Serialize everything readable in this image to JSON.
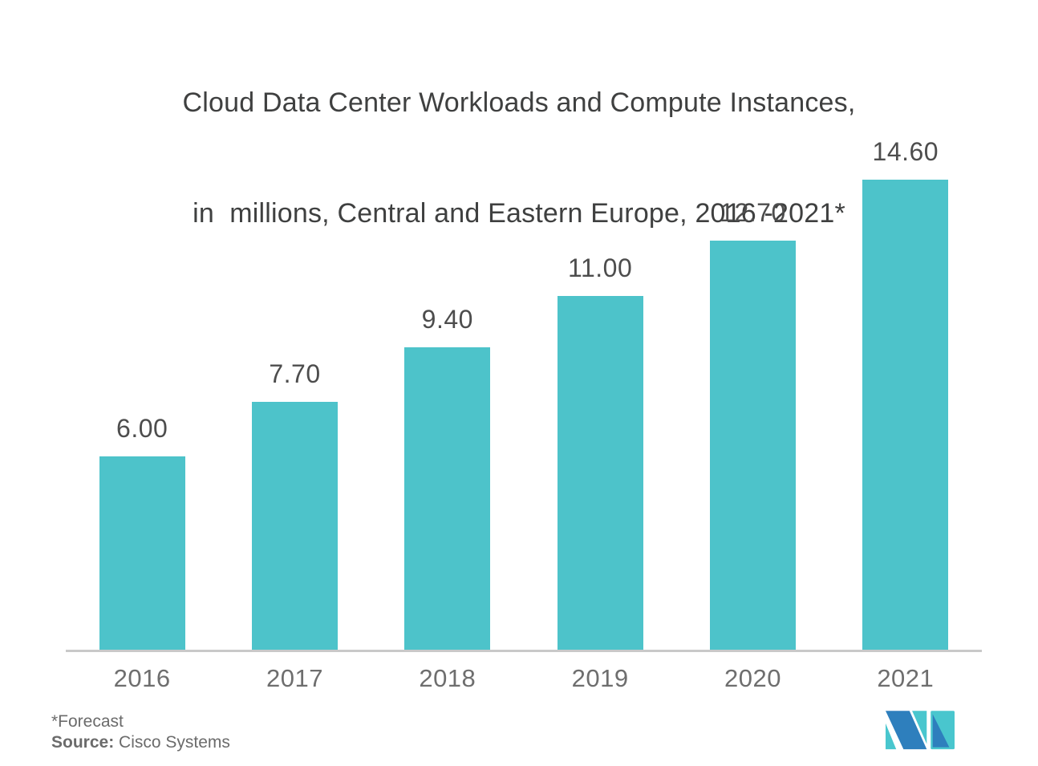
{
  "title": {
    "line1": "Cloud Data Center Workloads and Compute Instances,",
    "line2": "in  millions, Central and Eastern Europe, 2016 -2021*"
  },
  "chart_data": {
    "type": "bar",
    "title": "Cloud Data Center Workloads and Compute Instances, in millions, Central and Eastern Europe, 2016-2021*",
    "categories": [
      "2016",
      "2017",
      "2018",
      "2019",
      "2020",
      "2021"
    ],
    "values": [
      6.0,
      7.7,
      9.4,
      11.0,
      12.7,
      14.6
    ],
    "value_labels": [
      "6.00",
      "7.70",
      "9.40",
      "11.00",
      "12.70",
      "14.60"
    ],
    "unit": "millions",
    "xlabel": "",
    "ylabel": "",
    "ylim": [
      0,
      15.2
    ],
    "grid": false,
    "legend": "none",
    "bar_color": "#4DC3CA",
    "value_label_color": "#4D4D4D",
    "axis_line_color": "#C9C9C9",
    "tick_label_color": "#6E6E6E"
  },
  "footer": {
    "forecast_note": "*Forecast",
    "source_label": "Source:",
    "source_value": " Cisco Systems"
  },
  "logo": {
    "name": "mordor-intelligence-logo",
    "teal": "#49C6CE",
    "blue": "#2E7FBD"
  }
}
